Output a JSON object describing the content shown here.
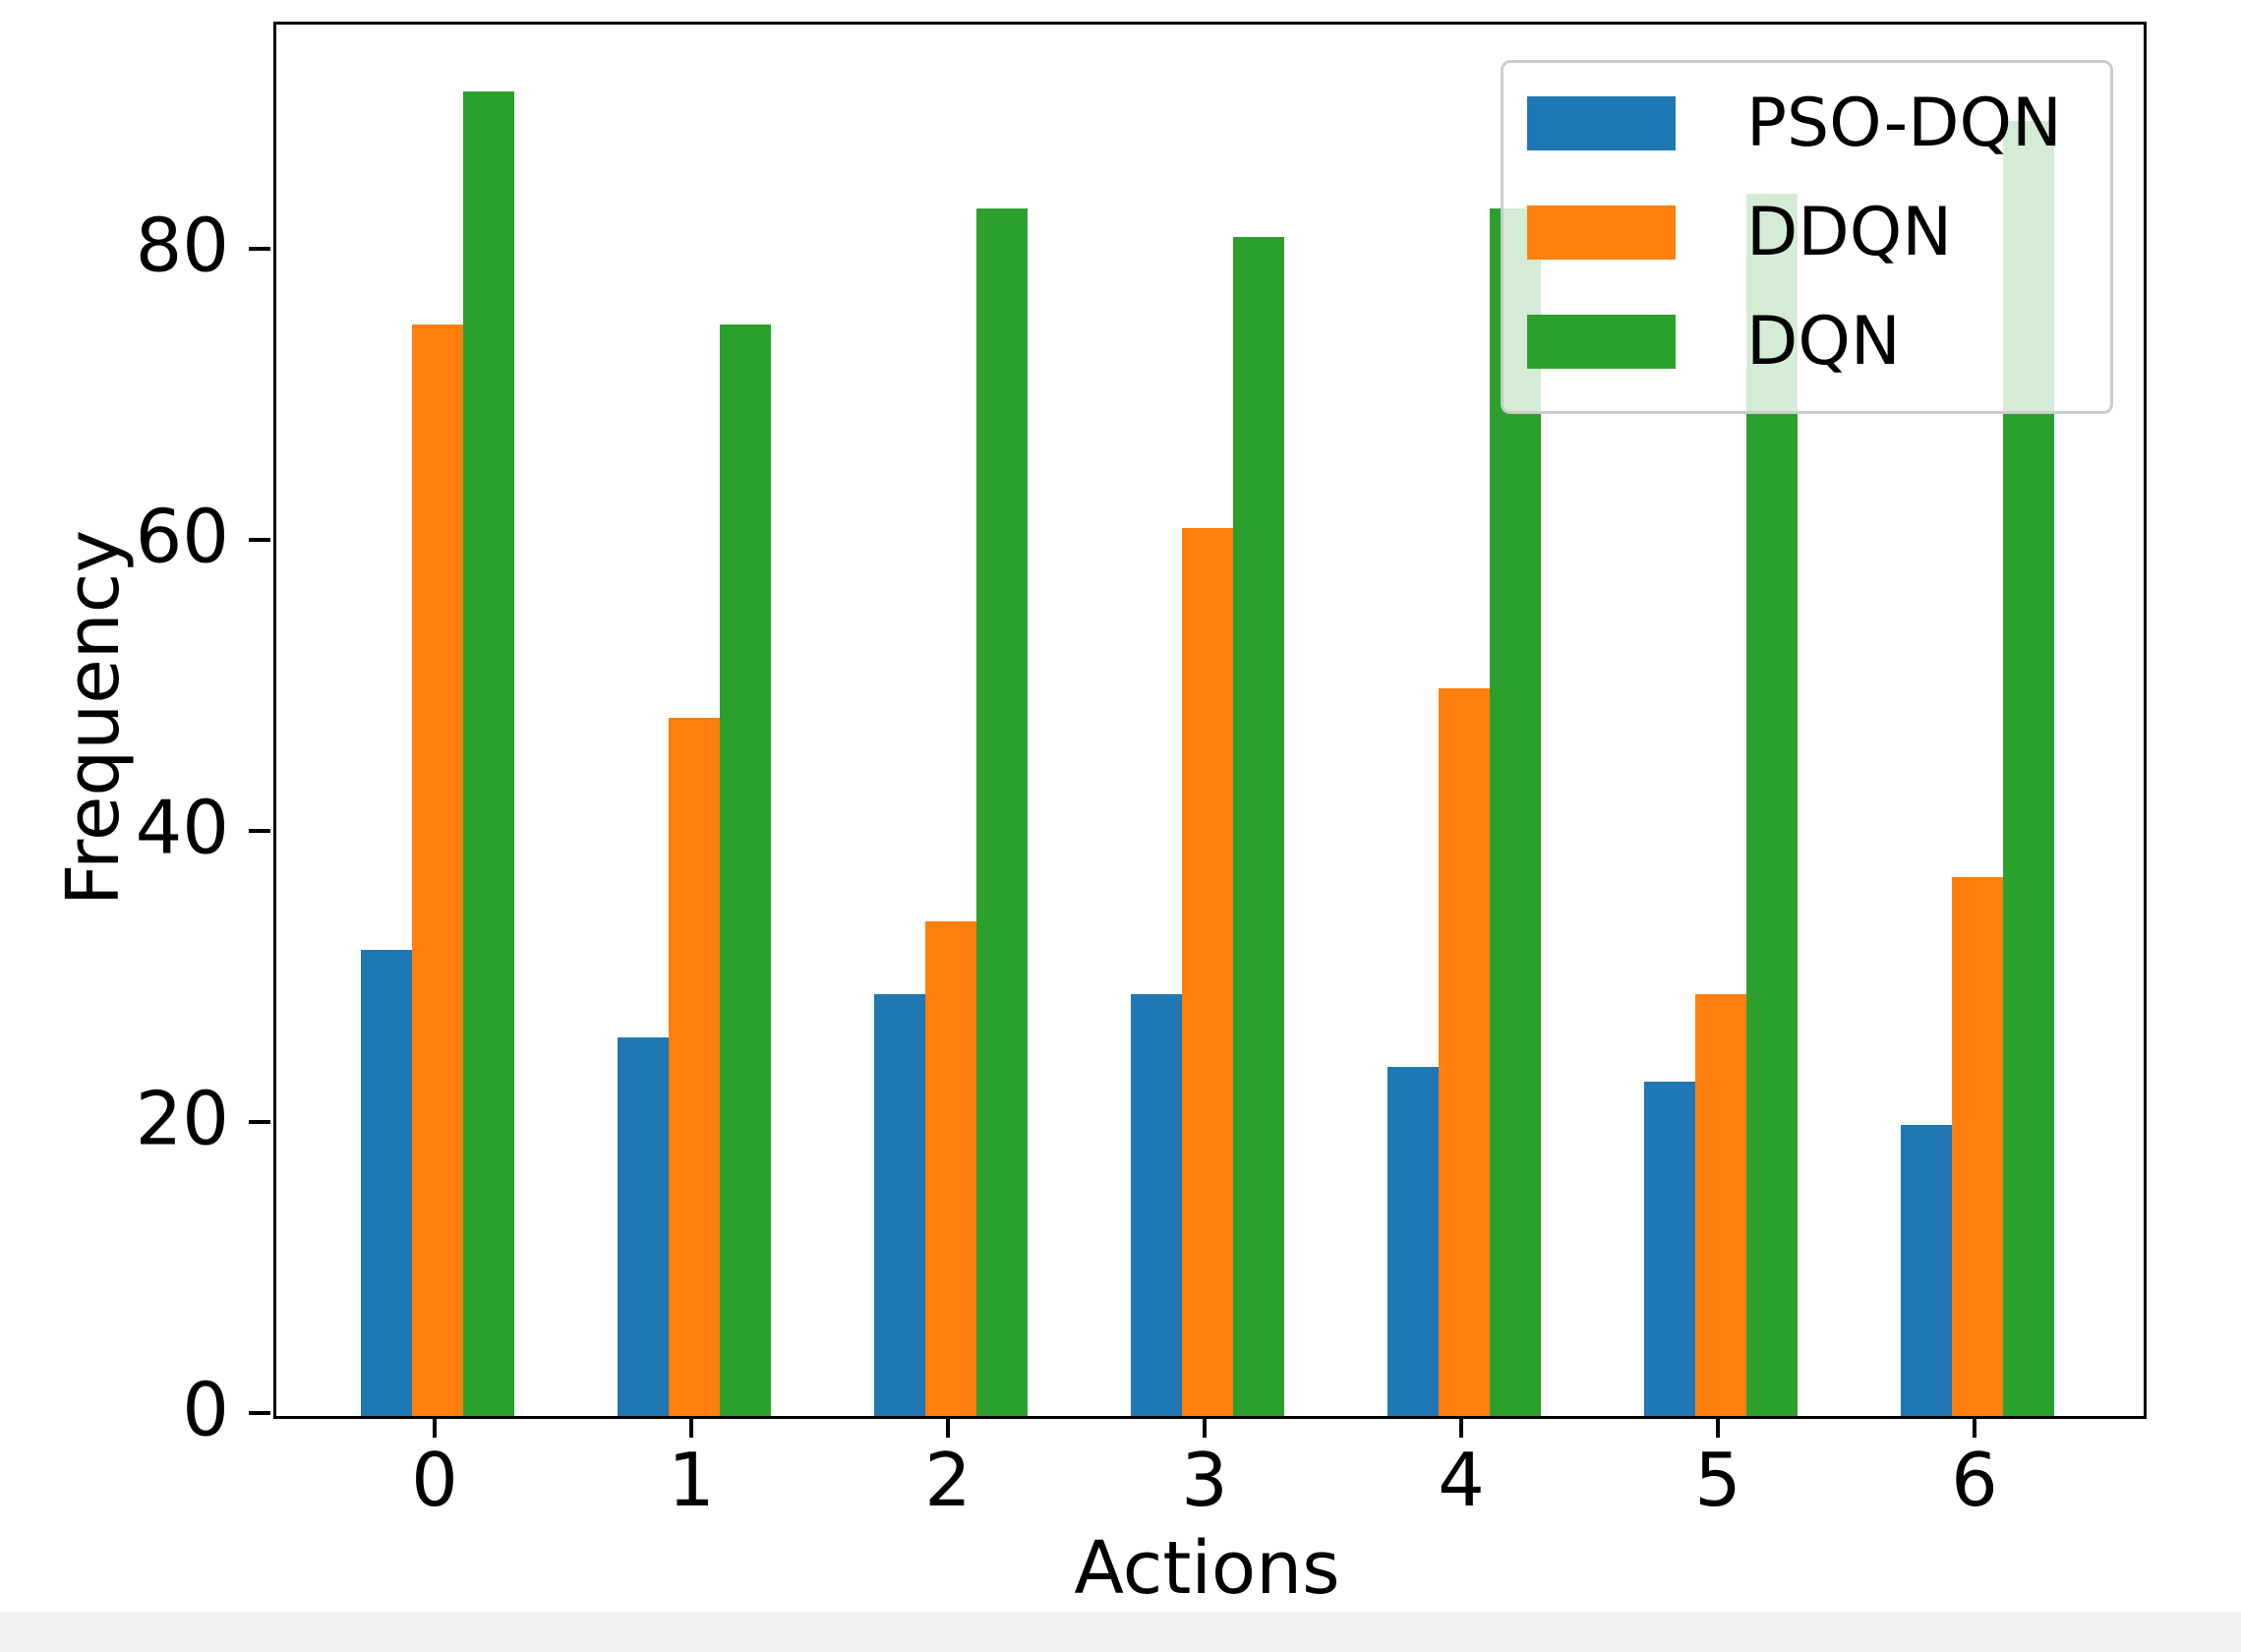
{
  "figure": {
    "background": "#ffffff",
    "bottom_strip_color": "#f0f0f0",
    "spine_color": "#000000",
    "legend_border_color": "#cccccc"
  },
  "chart_data": {
    "type": "bar",
    "title": "",
    "xlabel": "Actions",
    "ylabel": "Frequency",
    "categories": [
      "0",
      "1",
      "2",
      "3",
      "4",
      "5",
      "6"
    ],
    "series": [
      {
        "name": "PSO-DQN",
        "color": "#1f77b4",
        "values": [
          32,
          26,
          29,
          29,
          24,
          23,
          20
        ]
      },
      {
        "name": "DDQN",
        "color": "#ff7f0e",
        "values": [
          75,
          48,
          34,
          61,
          50,
          29,
          37
        ]
      },
      {
        "name": "DQN",
        "color": "#2ca02c",
        "values": [
          91,
          75,
          83,
          81,
          83,
          84,
          89
        ]
      }
    ],
    "yticks": [
      "0",
      "20",
      "40",
      "60",
      "80"
    ],
    "ylim": [
      0,
      95.6
    ],
    "bar_width_fraction": 0.2,
    "grid": false,
    "legend_position": "upper right",
    "legend_frame_alpha": 0.8
  }
}
